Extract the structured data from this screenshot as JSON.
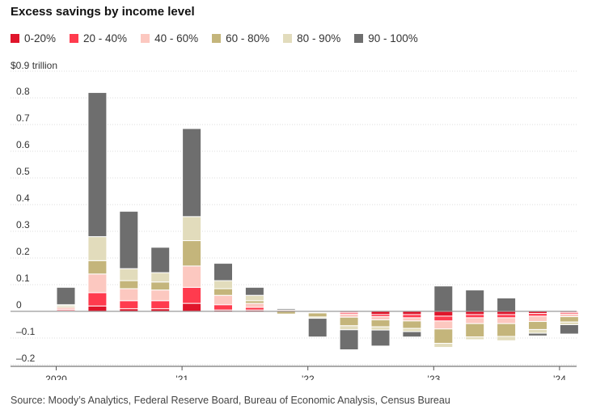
{
  "header": {
    "title": "Excess savings by income level",
    "unit_label": "$0.9 trillion"
  },
  "footer": {
    "source": "Source: Moody’s Analytics, Federal Reserve Board, Bureau of Economic Analysis, Census Bureau"
  },
  "chart_data": {
    "type": "bar",
    "stacked": true,
    "title": "Excess savings by income level",
    "ylabel": "$0.9 trillion",
    "ylim": [
      -0.2,
      0.9
    ],
    "yticks": [
      "0.8",
      "0.7",
      "0.6",
      "0.5",
      "0.4",
      "0.3",
      "0.2",
      "0.1",
      "0",
      "–0.1",
      "–0.2"
    ],
    "ytick_values": [
      0.8,
      0.7,
      0.6,
      0.5,
      0.4,
      0.3,
      0.2,
      0.1,
      0,
      -0.1,
      -0.2
    ],
    "xtick_labels": [
      "2020",
      "’21",
      "’22",
      "’23",
      "’24"
    ],
    "xtick_positions": [
      0,
      4,
      8,
      12,
      16
    ],
    "legend_position": "top-left",
    "grid": "horizontal",
    "categories": [
      "2020Q1",
      "2020Q2",
      "2020Q3",
      "2020Q4",
      "2021Q1",
      "2021Q2",
      "2021Q3",
      "2021Q4",
      "2022Q1",
      "2022Q2",
      "2022Q3",
      "2022Q4",
      "2023Q1",
      "2023Q2",
      "2023Q3",
      "2023Q4",
      "2024Q1"
    ],
    "series": [
      {
        "name": "0-20%",
        "color": "#e0152b",
        "values": [
          0.002,
          0.02,
          0.01,
          0.01,
          0.03,
          0.005,
          0.005,
          0.0,
          -0.002,
          -0.004,
          -0.012,
          -0.012,
          -0.018,
          -0.012,
          -0.012,
          -0.008,
          -0.004
        ]
      },
      {
        "name": "20 - 40%",
        "color": "#ff3b4e",
        "values": [
          0.005,
          0.05,
          0.03,
          0.03,
          0.06,
          0.02,
          0.01,
          0.0,
          -0.002,
          -0.006,
          -0.008,
          -0.012,
          -0.018,
          -0.012,
          -0.012,
          -0.01,
          -0.006
        ]
      },
      {
        "name": "40 - 60%",
        "color": "#fcc8c0",
        "values": [
          0.008,
          0.07,
          0.045,
          0.04,
          0.08,
          0.035,
          0.015,
          0.005,
          -0.002,
          -0.012,
          -0.012,
          -0.012,
          -0.03,
          -0.022,
          -0.022,
          -0.02,
          -0.01
        ]
      },
      {
        "name": "60 - 80%",
        "color": "#c4b57b",
        "values": [
          0.005,
          0.05,
          0.03,
          0.03,
          0.095,
          0.025,
          0.01,
          -0.01,
          -0.015,
          -0.032,
          -0.026,
          -0.028,
          -0.054,
          -0.05,
          -0.048,
          -0.03,
          -0.02
        ]
      },
      {
        "name": "80 - 90%",
        "color": "#e2dcbc",
        "values": [
          0.005,
          0.09,
          0.045,
          0.035,
          0.09,
          0.03,
          0.02,
          0.0,
          -0.005,
          -0.015,
          -0.012,
          -0.012,
          -0.015,
          -0.01,
          -0.016,
          -0.014,
          -0.01
        ]
      },
      {
        "name": "90 - 100%",
        "color": "#6e6e6e",
        "values": [
          0.065,
          0.54,
          0.215,
          0.095,
          0.33,
          0.065,
          0.03,
          0.005,
          -0.07,
          -0.075,
          -0.06,
          -0.02,
          0.095,
          0.08,
          0.05,
          -0.01,
          -0.035
        ]
      }
    ]
  }
}
